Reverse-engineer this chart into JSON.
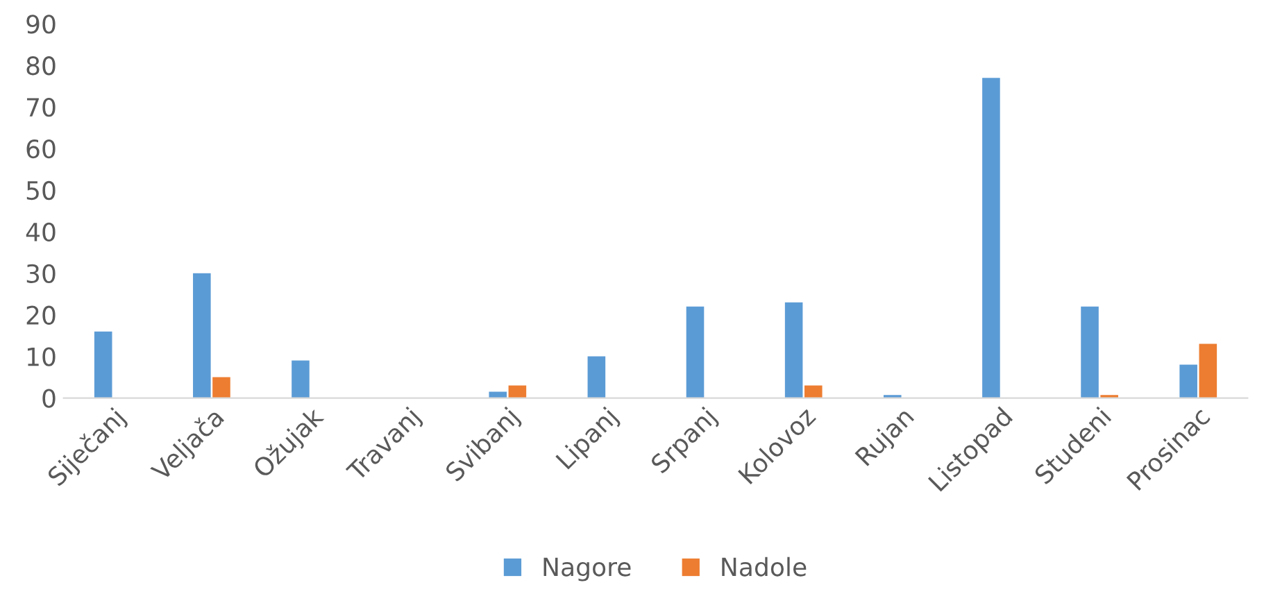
{
  "chart_data": {
    "type": "bar",
    "categories": [
      "Siječanj",
      "Veljača",
      "Ožujak",
      "Travanj",
      "Svibanj",
      "Lipanj",
      "Srpanj",
      "Kolovoz",
      "Rujan",
      "Listopad",
      "Studeni",
      "Prosinac"
    ],
    "series": [
      {
        "name": "Nagore",
        "color": "#5b9bd5",
        "values": [
          16,
          30,
          9,
          0,
          1.5,
          10,
          22,
          23,
          0.7,
          77,
          22,
          8
        ]
      },
      {
        "name": "Nadole",
        "color": "#ed7d31",
        "values": [
          0,
          5,
          0,
          0,
          3,
          0,
          0,
          3,
          0,
          0,
          0.7,
          13
        ]
      }
    ],
    "ylim": [
      0,
      90
    ],
    "yticks": [
      0,
      10,
      20,
      30,
      40,
      50,
      60,
      70,
      80,
      90
    ],
    "grid": false,
    "legend": "bottom"
  }
}
